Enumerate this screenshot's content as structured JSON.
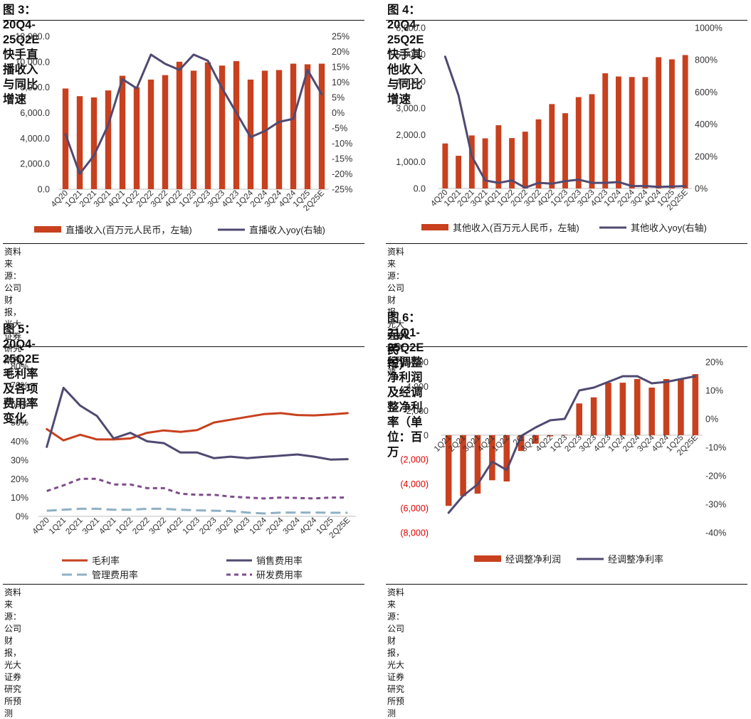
{
  "charts": [
    {
      "title": "图 3：20Q4-25Q2E 快手直播收入与同比增速",
      "source": "资料来源：公司财报，光大证券研究所预测",
      "chart_data": {
        "type": "bar",
        "categories": [
          "4Q20",
          "1Q21",
          "2Q21",
          "3Q21",
          "4Q21",
          "1Q22",
          "2Q22",
          "3Q22",
          "4Q22",
          "1Q23",
          "2Q23",
          "3Q23",
          "4Q23",
          "1Q24",
          "2Q24",
          "3Q24",
          "4Q24",
          "1Q25",
          "2Q25E"
        ],
        "x_tick_labels": [
          "4Q20",
          "1Q21",
          "2Q21",
          "3Q21",
          "4Q21",
          "1Q22",
          "2Q22",
          "3Q22",
          "4Q22",
          "1Q23",
          "2Q23",
          "3Q23",
          "4Q23",
          "1Q24",
          "2Q24",
          "3Q24",
          "4Q24",
          "1Q25",
          "2Q25E"
        ],
        "series": [
          {
            "name": "直播收入(百万元人民币，左轴)",
            "type": "bar",
            "axis": "left",
            "color": "#c8401e",
            "values": [
              7900,
              7300,
              7200,
              7750,
              8900,
              8000,
              8600,
              8950,
              10000,
              9300,
              9950,
              9700,
              10050,
              8600,
              9300,
              9350,
              9850,
              9800,
              9850
            ]
          },
          {
            "name": "直播收入yoy(右轴)",
            "type": "line",
            "axis": "right",
            "color": "#4f4a72",
            "values": [
              -7,
              -20,
              -14,
              -4,
              11,
              8,
              19,
              16,
              14,
              19,
              17,
              8,
              0,
              -8,
              -6,
              -3,
              -2,
              14,
              6
            ]
          }
        ],
        "y_left": {
          "min": 0,
          "max": 12000,
          "step": 2000,
          "decimals": 1,
          "ticks": [
            "0.0",
            "2,000.0",
            "4,000.0",
            "6,000.0",
            "8,000.0",
            "10,000.0",
            "12,000.0"
          ]
        },
        "y_right": {
          "min": -25,
          "max": 25,
          "step": 5,
          "suffix": "%",
          "ticks": [
            "-25%",
            "-20%",
            "-15%",
            "-10%",
            "-5%",
            "0%",
            "5%",
            "10%",
            "15%",
            "20%",
            "25%"
          ]
        },
        "legend": "bottom",
        "grid": false
      }
    },
    {
      "title": "图 4： 20Q4-25Q2E 快手其他收入与同比增速",
      "source": "资料来源：公司财报，光大证券研究所预测",
      "chart_data": {
        "type": "bar",
        "categories": [
          "4Q20",
          "1Q21",
          "2Q21",
          "3Q21",
          "4Q21",
          "1Q22",
          "2Q22",
          "3Q22",
          "4Q22",
          "1Q23",
          "2Q23",
          "3Q23",
          "4Q23",
          "1Q24",
          "2Q24",
          "3Q24",
          "4Q24",
          "1Q25",
          "2Q25E"
        ],
        "x_tick_labels": [
          "4Q20",
          "1Q21",
          "2Q21",
          "3Q21",
          "4Q21",
          "1Q22",
          "2Q22",
          "3Q22",
          "4Q22",
          "1Q23",
          "2Q23",
          "3Q23",
          "4Q23",
          "1Q24",
          "2Q24",
          "3Q24",
          "4Q24",
          "1Q25",
          "2Q25E"
        ],
        "series": [
          {
            "name": "其他收入(百万元人民币，左轴)",
            "type": "bar",
            "axis": "left",
            "color": "#c8401e",
            "values": [
              1680,
              1220,
              1980,
              1870,
              2360,
              1880,
              2120,
              2580,
              3150,
              2810,
              3410,
              3520,
              4300,
              4180,
              4160,
              4160,
              4900,
              4820,
              4980
            ]
          },
          {
            "name": "其他收入yoy(右轴)",
            "type": "line",
            "axis": "right",
            "color": "#4f4a72",
            "values": [
              820,
              580,
              200,
              50,
              35,
              50,
              5,
              35,
              30,
              45,
              55,
              35,
              35,
              40,
              15,
              15,
              10,
              12,
              15
            ]
          }
        ],
        "y_left": {
          "min": 0,
          "max": 6000,
          "step": 1000,
          "decimals": 1,
          "ticks": [
            "0.0",
            "1,000.0",
            "2,000.0",
            "3,000.0",
            "4,000.0",
            "5,000.0",
            "6,000.0"
          ]
        },
        "y_right": {
          "min": 0,
          "max": 1000,
          "step": 200,
          "suffix": "%",
          "ticks": [
            "0%",
            "200%",
            "400%",
            "600%",
            "800%",
            "1000%"
          ]
        },
        "legend": "bottom",
        "grid": false
      }
    },
    {
      "title": "图 5：20Q4-25Q2E 毛利率及各项费用率变化",
      "source": "资料来源：公司财报，光大证券研究所预测",
      "chart_data": {
        "type": "line",
        "categories": [
          "4Q20",
          "1Q21",
          "2Q21",
          "3Q21",
          "4Q21",
          "1Q22",
          "2Q22",
          "3Q22",
          "4Q22",
          "1Q23",
          "2Q23",
          "3Q23",
          "4Q23",
          "1Q24",
          "2Q24",
          "3Q24",
          "4Q24",
          "1Q25",
          "2Q25E"
        ],
        "x_tick_labels": [
          "4Q20",
          "1Q21",
          "2Q21",
          "3Q21",
          "4Q21",
          "1Q22",
          "2Q22",
          "3Q22",
          "4Q22",
          "1Q23",
          "2Q23",
          "3Q23",
          "4Q23",
          "1Q24",
          "2Q24",
          "3Q24",
          "4Q24",
          "1Q25",
          "2Q25E"
        ],
        "series": [
          {
            "name": "毛利率",
            "color": "#c8401e",
            "dash": "solid",
            "values": [
              46.5,
              40.5,
              43.5,
              41,
              41,
              41.5,
              44.5,
              45.8,
              45,
              46,
              50,
              51.5,
              53,
              54.5,
              55,
              54,
              53.8,
              54.3,
              55
            ]
          },
          {
            "name": "销售费用率",
            "color": "#4f4a72",
            "dash": "solid",
            "values": [
              37,
              68.5,
              59,
              53.5,
              41.5,
              44.5,
              40,
              39,
              34,
              34,
              31,
              31.8,
              31,
              31.7,
              32.3,
              33,
              31.8,
              30.2,
              30.5
            ]
          },
          {
            "name": "管理费用率",
            "color": "#8fb0c4",
            "dash": "long",
            "values": [
              3,
              3.5,
              4,
              4,
              3.5,
              3.5,
              4,
              4,
              3.5,
              3.2,
              3,
              2.8,
              2,
              1.5,
              2,
              2,
              2,
              1.9,
              1.9
            ]
          },
          {
            "name": "研发费用率",
            "color": "#7e4d8a",
            "dash": "short",
            "values": [
              13.5,
              16.5,
              20,
              20,
              17,
              17,
              15,
              15,
              12,
              11.5,
              11.5,
              10.5,
              10,
              9.5,
              10,
              9.8,
              9.5,
              10,
              10
            ]
          }
        ],
        "y_left": {
          "min": 0,
          "max": 80,
          "step": 10,
          "suffix": "%",
          "ticks": [
            "0%",
            "10%",
            "20%",
            "30%",
            "40%",
            "50%",
            "60%",
            "70%",
            "80%"
          ]
        },
        "legend": "bottom",
        "grid": false
      }
    },
    {
      "title": "图 6：21Q1-25Q2E 经调整净利润及经调整净利率（单位：百万元人民币）",
      "title_lines": [
        "图 6：21Q1-25Q2E 经调整净利润及经调整净利率（单位：百万",
        "元人民币）"
      ],
      "source": "资料来源：公司财报，光大证券研究所预测",
      "chart_data": {
        "type": "bar",
        "categories": [
          "1Q21",
          "2Q21",
          "3Q21",
          "4Q21",
          "1Q22",
          "2Q22",
          "3Q22",
          "4Q22",
          "1Q23",
          "2Q23",
          "3Q23",
          "4Q23",
          "1Q24",
          "2Q24",
          "3Q24",
          "4Q24",
          "1Q25",
          "2Q25E"
        ],
        "x_tick_labels": [
          "1Q21",
          "2Q21",
          "3Q21",
          "4Q21",
          "1Q22",
          "2Q",
          "3Q22",
          "4Q22",
          "1Q23",
          "2Q23",
          "3Q23",
          "4Q23",
          "1Q24",
          "2Q24",
          "3Q24",
          "4Q24",
          "1Q25",
          "2Q25E"
        ],
        "series": [
          {
            "name": "经调整净利润",
            "type": "bar",
            "axis": "left",
            "color": "#c8401e",
            "values": [
              -5800,
              -5000,
              -4800,
              -3700,
              -3800,
              -1300,
              -700,
              -100,
              30,
              2600,
              3100,
              4300,
              4300,
              4600,
              3900,
              4600,
              4600,
              5000
            ]
          },
          {
            "name": "经调整净利率",
            "type": "line",
            "axis": "right",
            "color": "#4f4a72",
            "values": [
              -33,
              -27,
              -23,
              -15,
              -18,
              -6,
              -3,
              -0.5,
              0,
              10,
              11,
              13,
              15,
              15,
              12.5,
              13,
              14,
              15
            ]
          }
        ],
        "y_left": {
          "min": -8000,
          "max": 6000,
          "step": 2000,
          "negative_color": "#e00000",
          "ticks": [
            "(8,000)",
            "(6,000)",
            "(4,000)",
            "(2,000)",
            "0",
            "2,000",
            "4,000",
            "6,000"
          ]
        },
        "y_right": {
          "min": -40,
          "max": 20,
          "step": 10,
          "suffix": "%",
          "ticks": [
            "-40%",
            "-30%",
            "-20%",
            "-10%",
            "0%",
            "10%",
            "20%"
          ]
        },
        "legend": "bottom",
        "grid": false
      }
    }
  ]
}
